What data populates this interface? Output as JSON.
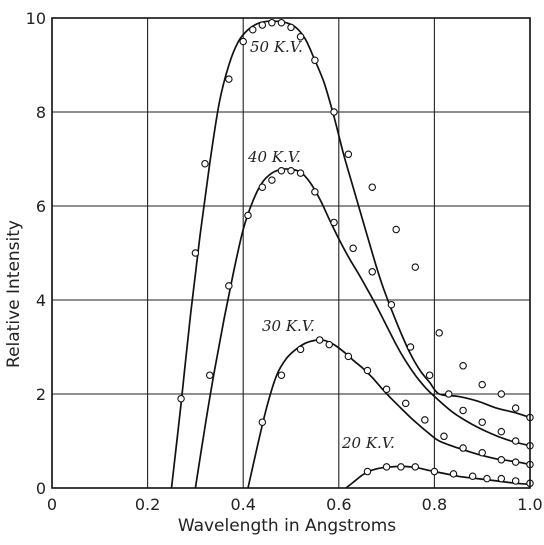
{
  "chart_data": {
    "type": "line",
    "title": "",
    "xlabel": "Wavelength in Angstroms",
    "ylabel": "Relative Intensity",
    "xlim": [
      0,
      1.0
    ],
    "ylim": [
      0,
      10
    ],
    "grid": true,
    "xticks": [
      "0",
      "0.2",
      "0.4",
      "0.6",
      "0.8",
      "1.0"
    ],
    "yticks": [
      "0",
      "2",
      "4",
      "6",
      "8",
      "10"
    ],
    "series": [
      {
        "name": "50 K.V.",
        "curve": [
          [
            0.25,
            0
          ],
          [
            0.27,
            1.8
          ],
          [
            0.29,
            3.7
          ],
          [
            0.31,
            5.4
          ],
          [
            0.33,
            6.9
          ],
          [
            0.35,
            8.2
          ],
          [
            0.37,
            9.0
          ],
          [
            0.39,
            9.5
          ],
          [
            0.41,
            9.75
          ],
          [
            0.43,
            9.88
          ],
          [
            0.45,
            9.93
          ],
          [
            0.47,
            9.93
          ],
          [
            0.49,
            9.9
          ],
          [
            0.51,
            9.8
          ],
          [
            0.53,
            9.55
          ],
          [
            0.55,
            9.1
          ],
          [
            0.57,
            8.6
          ],
          [
            0.59,
            7.9
          ],
          [
            0.61,
            7.1
          ],
          [
            0.63,
            6.4
          ],
          [
            0.65,
            5.7
          ],
          [
            0.67,
            5.0
          ],
          [
            0.69,
            4.35
          ],
          [
            0.71,
            3.8
          ],
          [
            0.73,
            3.3
          ],
          [
            0.75,
            2.85
          ],
          [
            0.77,
            2.5
          ],
          [
            0.79,
            2.25
          ],
          [
            0.81,
            2.0
          ],
          [
            0.85,
            1.95
          ],
          [
            0.89,
            1.85
          ],
          [
            0.93,
            1.7
          ],
          [
            0.97,
            1.6
          ],
          [
            1.0,
            1.5
          ]
        ],
        "points": [
          [
            0.27,
            1.9
          ],
          [
            0.3,
            5.0
          ],
          [
            0.32,
            6.9
          ],
          [
            0.37,
            8.7
          ],
          [
            0.4,
            9.5
          ],
          [
            0.42,
            9.75
          ],
          [
            0.44,
            9.85
          ],
          [
            0.46,
            9.9
          ],
          [
            0.48,
            9.9
          ],
          [
            0.5,
            9.8
          ],
          [
            0.52,
            9.6
          ],
          [
            0.55,
            9.1
          ],
          [
            0.59,
            8.0
          ],
          [
            0.62,
            7.1
          ],
          [
            0.67,
            6.4
          ],
          [
            0.72,
            5.5
          ],
          [
            0.76,
            4.7
          ],
          [
            0.81,
            3.3
          ],
          [
            0.86,
            2.6
          ],
          [
            0.9,
            2.2
          ],
          [
            0.94,
            2.0
          ],
          [
            0.97,
            1.7
          ],
          [
            1.0,
            1.5
          ]
        ]
      },
      {
        "name": "40 K.V.",
        "curve": [
          [
            0.3,
            0
          ],
          [
            0.32,
            1.3
          ],
          [
            0.34,
            2.5
          ],
          [
            0.36,
            3.6
          ],
          [
            0.38,
            4.6
          ],
          [
            0.4,
            5.5
          ],
          [
            0.42,
            6.1
          ],
          [
            0.44,
            6.5
          ],
          [
            0.46,
            6.7
          ],
          [
            0.48,
            6.78
          ],
          [
            0.5,
            6.78
          ],
          [
            0.52,
            6.72
          ],
          [
            0.54,
            6.5
          ],
          [
            0.56,
            6.15
          ],
          [
            0.58,
            5.72
          ],
          [
            0.6,
            5.3
          ],
          [
            0.62,
            4.92
          ],
          [
            0.64,
            4.58
          ],
          [
            0.66,
            4.22
          ],
          [
            0.68,
            3.85
          ],
          [
            0.7,
            3.45
          ],
          [
            0.72,
            3.05
          ],
          [
            0.74,
            2.7
          ],
          [
            0.76,
            2.4
          ],
          [
            0.78,
            2.15
          ],
          [
            0.8,
            1.95
          ],
          [
            0.84,
            1.6
          ],
          [
            0.88,
            1.35
          ],
          [
            0.92,
            1.15
          ],
          [
            0.96,
            1.0
          ],
          [
            1.0,
            0.9
          ]
        ],
        "points": [
          [
            0.33,
            2.4
          ],
          [
            0.37,
            4.3
          ],
          [
            0.41,
            5.8
          ],
          [
            0.44,
            6.4
          ],
          [
            0.46,
            6.55
          ],
          [
            0.48,
            6.75
          ],
          [
            0.5,
            6.75
          ],
          [
            0.52,
            6.7
          ],
          [
            0.55,
            6.3
          ],
          [
            0.59,
            5.65
          ],
          [
            0.63,
            5.1
          ],
          [
            0.67,
            4.6
          ],
          [
            0.71,
            3.9
          ],
          [
            0.75,
            3.0
          ],
          [
            0.79,
            2.4
          ],
          [
            0.83,
            2.0
          ],
          [
            0.86,
            1.65
          ],
          [
            0.9,
            1.4
          ],
          [
            0.94,
            1.2
          ],
          [
            0.97,
            1.0
          ],
          [
            1.0,
            0.9
          ]
        ]
      },
      {
        "name": "30 K.V.",
        "curve": [
          [
            0.41,
            0
          ],
          [
            0.43,
            0.9
          ],
          [
            0.45,
            1.75
          ],
          [
            0.47,
            2.4
          ],
          [
            0.49,
            2.75
          ],
          [
            0.51,
            2.95
          ],
          [
            0.53,
            3.08
          ],
          [
            0.55,
            3.14
          ],
          [
            0.57,
            3.14
          ],
          [
            0.59,
            3.05
          ],
          [
            0.61,
            2.9
          ],
          [
            0.63,
            2.72
          ],
          [
            0.65,
            2.55
          ],
          [
            0.67,
            2.35
          ],
          [
            0.69,
            2.12
          ],
          [
            0.71,
            1.9
          ],
          [
            0.73,
            1.7
          ],
          [
            0.75,
            1.5
          ],
          [
            0.77,
            1.32
          ],
          [
            0.79,
            1.15
          ],
          [
            0.81,
            1.0
          ],
          [
            0.85,
            0.85
          ],
          [
            0.89,
            0.72
          ],
          [
            0.93,
            0.62
          ],
          [
            0.97,
            0.56
          ],
          [
            1.0,
            0.5
          ]
        ],
        "points": [
          [
            0.44,
            1.4
          ],
          [
            0.48,
            2.4
          ],
          [
            0.52,
            2.95
          ],
          [
            0.56,
            3.15
          ],
          [
            0.58,
            3.05
          ],
          [
            0.62,
            2.8
          ],
          [
            0.66,
            2.5
          ],
          [
            0.7,
            2.1
          ],
          [
            0.74,
            1.8
          ],
          [
            0.78,
            1.45
          ],
          [
            0.82,
            1.1
          ],
          [
            0.86,
            0.85
          ],
          [
            0.9,
            0.75
          ],
          [
            0.94,
            0.6
          ],
          [
            0.97,
            0.55
          ],
          [
            1.0,
            0.5
          ]
        ]
      },
      {
        "name": "20 K.V.",
        "curve": [
          [
            0.615,
            0
          ],
          [
            0.63,
            0.12
          ],
          [
            0.65,
            0.28
          ],
          [
            0.67,
            0.38
          ],
          [
            0.69,
            0.43
          ],
          [
            0.71,
            0.45
          ],
          [
            0.73,
            0.46
          ],
          [
            0.75,
            0.45
          ],
          [
            0.77,
            0.42
          ],
          [
            0.79,
            0.37
          ],
          [
            0.81,
            0.33
          ],
          [
            0.85,
            0.25
          ],
          [
            0.89,
            0.2
          ],
          [
            0.93,
            0.15
          ],
          [
            0.97,
            0.1
          ],
          [
            1.0,
            0.08
          ]
        ],
        "points": [
          [
            0.66,
            0.35
          ],
          [
            0.7,
            0.45
          ],
          [
            0.73,
            0.45
          ],
          [
            0.76,
            0.45
          ],
          [
            0.8,
            0.35
          ],
          [
            0.84,
            0.3
          ],
          [
            0.88,
            0.25
          ],
          [
            0.91,
            0.2
          ],
          [
            0.94,
            0.2
          ],
          [
            0.97,
            0.15
          ],
          [
            1.0,
            0.1
          ]
        ]
      }
    ]
  }
}
